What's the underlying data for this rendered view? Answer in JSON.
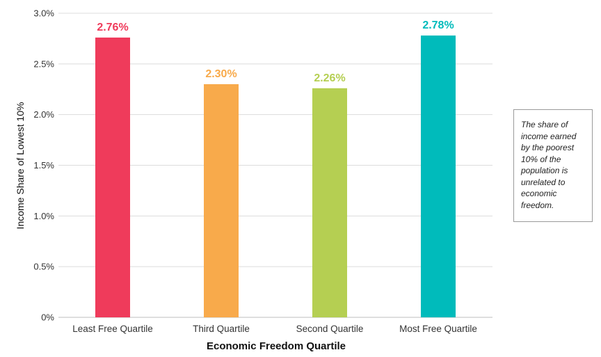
{
  "chart_data": {
    "type": "bar",
    "categories": [
      "Least Free Quartile",
      "Third Quartile",
      "Second Quartile",
      "Most Free Quartile"
    ],
    "values": [
      2.76,
      2.3,
      2.26,
      2.78
    ],
    "value_labels": [
      "2.76%",
      "2.30%",
      "2.26%",
      "2.78%"
    ],
    "colors": [
      "#ef3b5b",
      "#f8aa4b",
      "#b5cf52",
      "#00bbbb"
    ],
    "xlabel": "Economic Freedom Quartile",
    "ylabel": "Income Share of Lowest 10%",
    "ylim": [
      0,
      3.0
    ],
    "yticks": [
      0,
      0.5,
      1.0,
      1.5,
      2.0,
      2.5,
      3.0
    ],
    "ytick_labels": [
      "0%",
      "0.5%",
      "1.0%",
      "1.5%",
      "2.0%",
      "2.5%",
      "3.0%"
    ],
    "grid": true,
    "legend": "none"
  },
  "annotation": {
    "text": "The share of income earned by the poorest 10% of the population is unrelated to economic freedom."
  }
}
